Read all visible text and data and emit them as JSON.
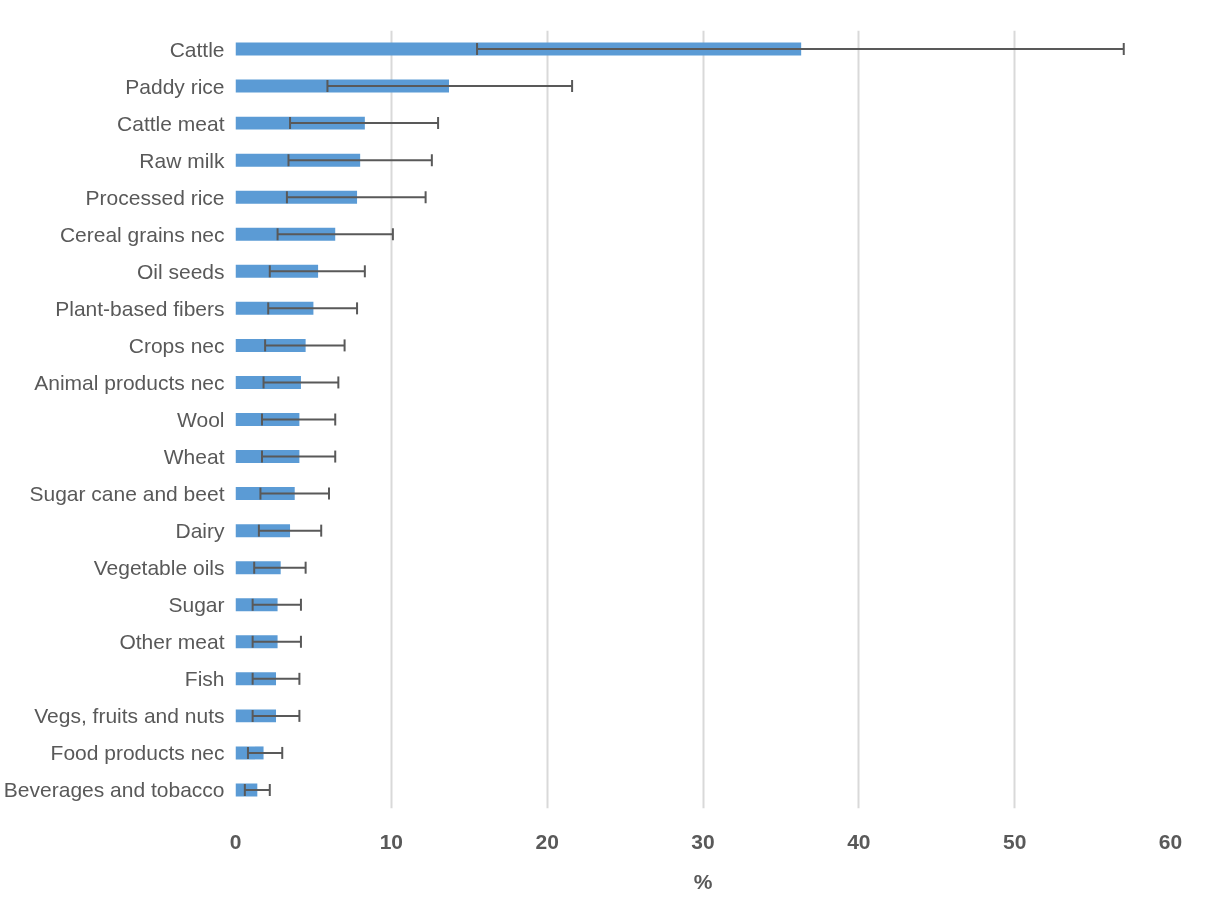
{
  "chart_data": {
    "type": "bar",
    "orientation": "horizontal",
    "xlabel": "%",
    "categories": [
      "Cattle",
      "Paddy rice",
      "Cattle meat",
      "Raw milk",
      "Processed rice",
      "Cereal grains nec",
      "Oil seeds",
      "Plant-based fibers",
      "Crops nec",
      "Animal products nec",
      "Wool",
      "Wheat",
      "Sugar cane and beet",
      "Dairy",
      "Vegetable oils",
      "Sugar",
      "Other meat",
      "Fish",
      "Vegs, fruits and nuts",
      "Food products nec",
      "Beverages and tobacco"
    ],
    "values": [
      36.3,
      13.7,
      8.3,
      8.0,
      7.8,
      6.4,
      5.3,
      5.0,
      4.5,
      4.2,
      4.1,
      4.1,
      3.8,
      3.5,
      2.9,
      2.7,
      2.7,
      2.6,
      2.6,
      1.8,
      1.4
    ],
    "errors": [
      [
        15.5,
        57.0
      ],
      [
        5.9,
        21.6
      ],
      [
        3.5,
        13.0
      ],
      [
        3.4,
        12.6
      ],
      [
        3.3,
        12.2
      ],
      [
        2.7,
        10.1
      ],
      [
        2.2,
        8.3
      ],
      [
        2.1,
        7.8
      ],
      [
        1.9,
        7.0
      ],
      [
        1.8,
        6.6
      ],
      [
        1.7,
        6.4
      ],
      [
        1.7,
        6.4
      ],
      [
        1.6,
        6.0
      ],
      [
        1.5,
        5.5
      ],
      [
        1.2,
        4.5
      ],
      [
        1.1,
        4.2
      ],
      [
        1.1,
        4.2
      ],
      [
        1.1,
        4.1
      ],
      [
        1.1,
        4.1
      ],
      [
        0.8,
        3.0
      ],
      [
        0.6,
        2.2
      ]
    ],
    "color": "#5b9bd5",
    "xlim": [
      0,
      60
    ],
    "xticks": [
      0,
      10,
      20,
      30,
      40,
      50,
      60
    ],
    "grid": "x"
  }
}
